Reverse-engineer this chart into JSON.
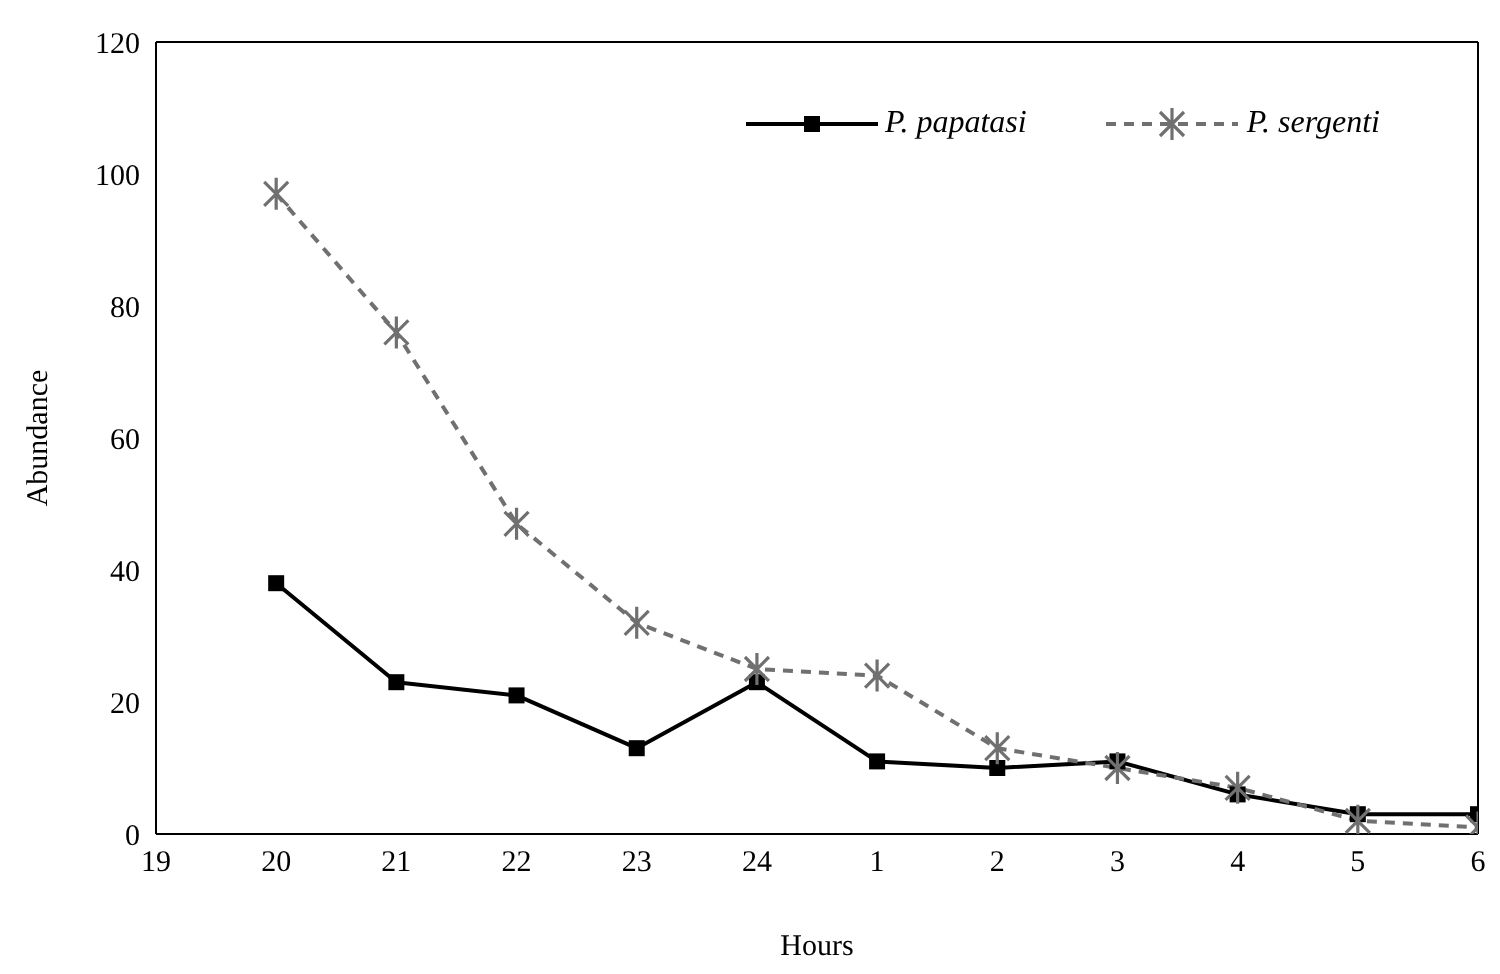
{
  "chart_data": {
    "type": "line",
    "xlabel": "Hours",
    "ylabel": "Abundance",
    "categories": [
      "19",
      "20",
      "21",
      "22",
      "23",
      "24",
      "1",
      "2",
      "3",
      "4",
      "5",
      "6"
    ],
    "ylim": [
      0,
      120
    ],
    "yticks": [
      0,
      20,
      40,
      60,
      80,
      100,
      120
    ],
    "grid": false,
    "legend": "top right",
    "series": [
      {
        "name": "P. papatasi",
        "color": "#000000",
        "marker": "square",
        "line_style": "solid",
        "values": [
          null,
          38,
          23,
          21,
          13,
          23,
          11,
          10,
          11,
          6,
          3,
          3
        ]
      },
      {
        "name": "P. sergenti",
        "color": "#707070",
        "marker": "cross",
        "line_style": "dashed",
        "values": [
          null,
          97,
          76,
          47,
          32,
          25,
          24,
          13,
          10,
          7,
          2,
          1
        ]
      }
    ]
  }
}
